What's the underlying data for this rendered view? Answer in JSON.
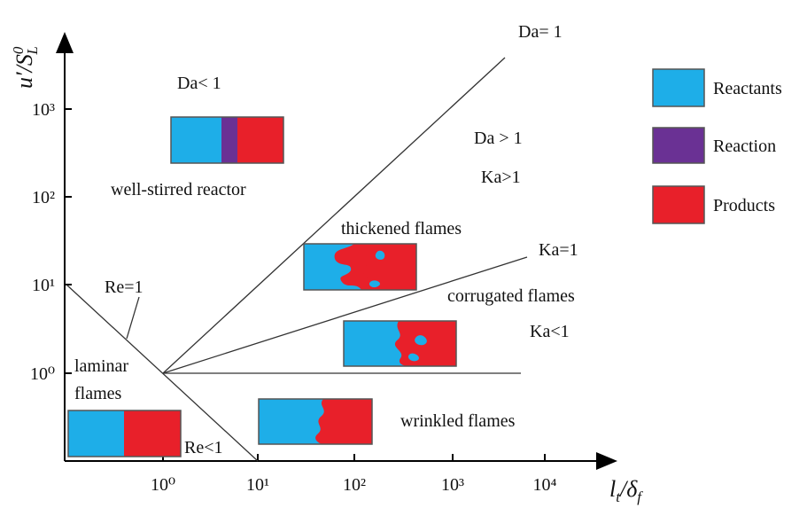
{
  "axes": {
    "x_label": {
      "main": "l",
      "sub": "t",
      "rest": "/δ",
      "sub2": "f"
    },
    "y_label": {
      "main": "u′/S",
      "sup": "0",
      "sub": "L"
    },
    "x_ticks": [
      "10⁰",
      "10¹",
      "10²",
      "10³",
      "10⁴"
    ],
    "y_ticks": [
      "10⁰",
      "10¹",
      "10²",
      "10³"
    ]
  },
  "labels": {
    "da_eq": "Da= 1",
    "da_lt": "Da< 1",
    "da_gt": "Da > 1",
    "ka_gt": "Ka>1",
    "wsr": "well-stirred reactor",
    "thickened": "thickened flames",
    "ka_eq": "Ka=1",
    "corrugated": "corrugated flames",
    "ka_lt": "Ka<1",
    "re_eq": "Re=1",
    "laminar": [
      "laminar",
      "flames"
    ],
    "wrinkled": "wrinkled flames",
    "re_lt": "Re<1"
  },
  "legend": [
    "Reactants",
    "Reaction",
    "Products"
  ]
}
